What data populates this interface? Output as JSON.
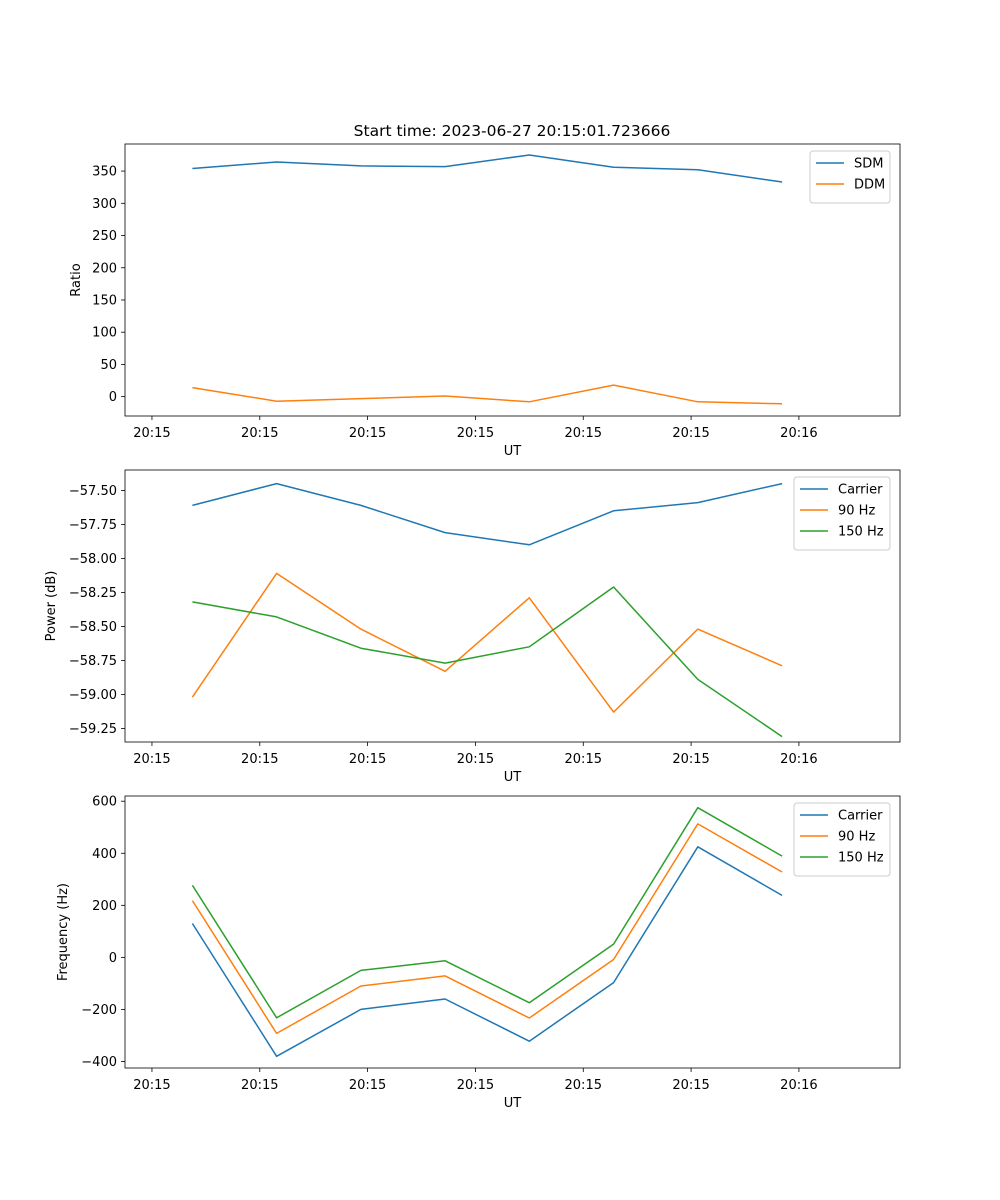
{
  "colors": {
    "blue": "#1f77b4",
    "orange": "#ff7f0e",
    "green": "#2ca02c"
  },
  "chart_data": [
    {
      "type": "line",
      "title": "Start time: 2023-06-27 20:15:01.723666",
      "xlabel": "UT",
      "ylabel": "Ratio",
      "xticks": [
        "20:15",
        "20:15",
        "20:15",
        "20:15",
        "20:15",
        "20:15",
        "20:16"
      ],
      "yticks": [
        "0",
        "50",
        "100",
        "150",
        "200",
        "250",
        "300",
        "350"
      ],
      "ylim": [
        -30,
        392
      ],
      "grid": false,
      "legend_position": "top-right",
      "x": [
        1,
        2,
        3,
        4,
        5,
        6,
        7,
        8
      ],
      "series": [
        {
          "name": "SDM",
          "color": "#1f77b4",
          "values": [
            354,
            364,
            358,
            357,
            375,
            356,
            352,
            333
          ]
        },
        {
          "name": "DDM",
          "color": "#ff7f0e",
          "values": [
            14,
            -7,
            -3,
            1,
            -8,
            18,
            -8,
            -11
          ]
        }
      ]
    },
    {
      "type": "line",
      "title": "",
      "xlabel": "UT",
      "ylabel": "Power (dB)",
      "xticks": [
        "20:15",
        "20:15",
        "20:15",
        "20:15",
        "20:15",
        "20:15",
        "20:16"
      ],
      "yticks": [
        "−59.25",
        "−59.00",
        "−58.75",
        "−58.50",
        "−58.25",
        "−58.00",
        "−57.75",
        "−57.50"
      ],
      "ylim": [
        -59.35,
        -57.35
      ],
      "grid": false,
      "legend_position": "top-right",
      "x": [
        1,
        2,
        3,
        4,
        5,
        6,
        7,
        8
      ],
      "series": [
        {
          "name": "Carrier",
          "color": "#1f77b4",
          "values": [
            -57.61,
            -57.45,
            -57.61,
            -57.81,
            -57.9,
            -57.65,
            -57.59,
            -57.45
          ]
        },
        {
          "name": "90 Hz",
          "color": "#ff7f0e",
          "values": [
            -59.02,
            -58.11,
            -58.52,
            -58.83,
            -58.29,
            -59.13,
            -58.52,
            -58.79
          ]
        },
        {
          "name": "150 Hz",
          "color": "#2ca02c",
          "values": [
            -58.32,
            -58.43,
            -58.66,
            -58.77,
            -58.65,
            -58.21,
            -58.89,
            -59.31
          ]
        }
      ]
    },
    {
      "type": "line",
      "title": "",
      "xlabel": "UT",
      "ylabel": "Frequency (Hz)",
      "xticks": [
        "20:15",
        "20:15",
        "20:15",
        "20:15",
        "20:15",
        "20:15",
        "20:16"
      ],
      "yticks": [
        "−400",
        "−200",
        "0",
        "200",
        "400",
        "600"
      ],
      "ylim": [
        -425,
        620
      ],
      "grid": false,
      "legend_position": "top-right",
      "x": [
        1,
        2,
        3,
        4,
        5,
        6,
        7,
        8
      ],
      "series": [
        {
          "name": "Carrier",
          "color": "#1f77b4",
          "values": [
            130,
            -380,
            -200,
            -160,
            -322,
            -97,
            425,
            238
          ]
        },
        {
          "name": "90 Hz",
          "color": "#ff7f0e",
          "values": [
            218,
            -292,
            -110,
            -71,
            -233,
            -8,
            513,
            328
          ]
        },
        {
          "name": "150 Hz",
          "color": "#2ca02c",
          "values": [
            277,
            -232,
            -50,
            -13,
            -174,
            51,
            575,
            389
          ]
        }
      ]
    }
  ]
}
